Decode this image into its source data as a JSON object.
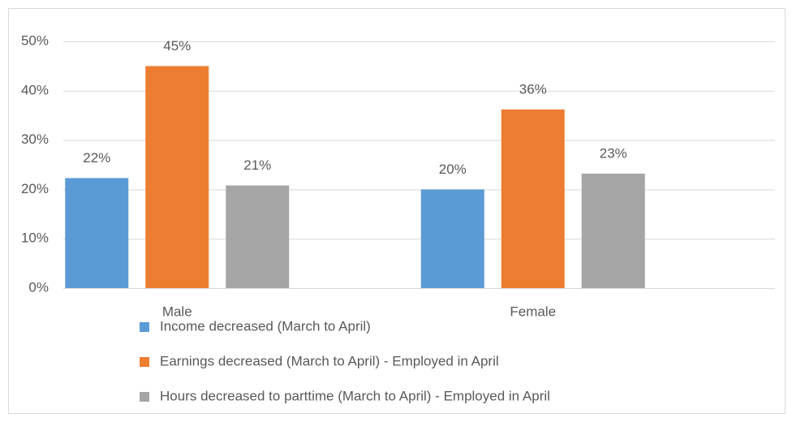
{
  "chart_data": {
    "type": "bar",
    "categories": [
      "Male",
      "Female"
    ],
    "series": [
      {
        "name": "Income decreased (March to April)",
        "color": "#5b9bd5",
        "values": [
          22.3,
          20
        ],
        "value_labels": [
          "22%",
          "20%"
        ]
      },
      {
        "name": "Earnings decreased (March to April) - Employed in April",
        "color": "#ed7d31",
        "values": [
          45,
          36.2
        ],
        "value_labels": [
          "45%",
          "36%"
        ]
      },
      {
        "name": "Hours decreased to parttime (March to April) - Employed in April",
        "color": "#a5a5a5",
        "values": [
          20.8,
          23.2
        ],
        "value_labels": [
          "21%",
          "23%"
        ]
      }
    ],
    "ylim": [
      0,
      50
    ],
    "yticks": [
      {
        "value": 0,
        "label": "0%"
      },
      {
        "value": 10,
        "label": "10%"
      },
      {
        "value": 20,
        "label": "20%"
      },
      {
        "value": 30,
        "label": "30%"
      },
      {
        "value": 40,
        "label": "40%"
      },
      {
        "value": 50,
        "label": "50%"
      }
    ],
    "grid": true,
    "legend": "bottom"
  }
}
